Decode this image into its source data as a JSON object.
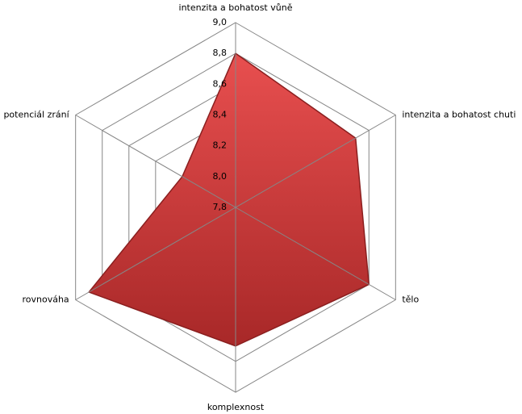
{
  "chart_data": {
    "type": "radar",
    "categories": [
      "intenzita a bohatost vůně",
      "intenzita a bohatost chuti",
      "tělo",
      "komplexnost",
      "rovnováha",
      "potenciál zrání"
    ],
    "values": [
      8.8,
      8.7,
      8.8,
      8.7,
      8.9,
      8.2
    ],
    "color": "#d63b3b",
    "ylim": [
      7.8,
      9.0
    ],
    "yticks": [
      {
        "value": 7.8,
        "label": "7,8"
      },
      {
        "value": 8.0,
        "label": "8,0"
      },
      {
        "value": 8.2,
        "label": "8,2"
      },
      {
        "value": 8.4,
        "label": "8,4"
      },
      {
        "value": 8.6,
        "label": "8,6"
      },
      {
        "value": 8.8,
        "label": "8,8"
      },
      {
        "value": 9.0,
        "label": "9,0"
      }
    ],
    "grid": true
  }
}
